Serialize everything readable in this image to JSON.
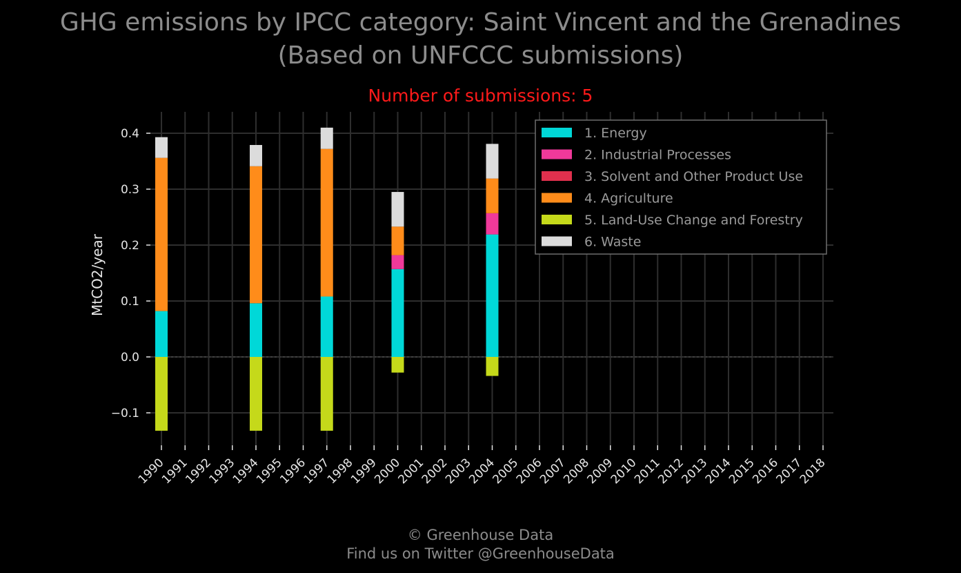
{
  "header": {
    "title_line1": "GHG emissions by IPCC category: Saint Vincent and the Grenadines",
    "title_line2": "(Based on UNFCCC submissions)",
    "subtitle": "Number of submissions: 5"
  },
  "footer": {
    "copyright": "© Greenhouse Data",
    "twitter": "Find us on Twitter @GreenhouseData"
  },
  "colors": {
    "background": "#000000",
    "grid": "#2e2e2e",
    "subtitle": "#ff1a1a"
  },
  "chart_data": {
    "type": "bar",
    "stacked": true,
    "title": "GHG emissions by IPCC category: Saint Vincent and the Grenadines",
    "subtitle": "Number of submissions: 5",
    "xlabel": "",
    "ylabel": "MtCO2/year",
    "ylim": [
      -0.14,
      0.44
    ],
    "yticks": [
      -0.1,
      0.0,
      0.1,
      0.2,
      0.3,
      0.4
    ],
    "ytick_labels": [
      "−0.1",
      "0.0",
      "0.1",
      "0.2",
      "0.3",
      "0.4"
    ],
    "grid": true,
    "legend_position": "top-right",
    "categories": [
      "1990",
      "1991",
      "1992",
      "1993",
      "1994",
      "1995",
      "1996",
      "1997",
      "1998",
      "1999",
      "2000",
      "2001",
      "2002",
      "2003",
      "2004",
      "2005",
      "2006",
      "2007",
      "2008",
      "2009",
      "2010",
      "2011",
      "2012",
      "2013",
      "2014",
      "2015",
      "2016",
      "2017",
      "2018"
    ],
    "series": [
      {
        "name": "1. Energy",
        "color": "#00d8d8",
        "values": [
          0.082,
          null,
          null,
          null,
          0.096,
          null,
          null,
          0.108,
          null,
          null,
          0.157,
          null,
          null,
          null,
          0.219,
          null,
          null,
          null,
          null,
          null,
          null,
          null,
          null,
          null,
          null,
          null,
          null,
          null,
          null
        ]
      },
      {
        "name": "2. Industrial Processes",
        "color": "#f0399a",
        "values": [
          0,
          null,
          null,
          null,
          0,
          null,
          null,
          0,
          null,
          null,
          0.025,
          null,
          null,
          null,
          0.038,
          null,
          null,
          null,
          null,
          null,
          null,
          null,
          null,
          null,
          null,
          null,
          null,
          null,
          null
        ]
      },
      {
        "name": "3. Solvent and Other Product Use",
        "color": "#e0304d",
        "values": [
          0,
          null,
          null,
          null,
          0,
          null,
          null,
          0,
          null,
          null,
          0,
          null,
          null,
          null,
          0,
          null,
          null,
          null,
          null,
          null,
          null,
          null,
          null,
          null,
          null,
          null,
          null,
          null,
          null
        ]
      },
      {
        "name": "4. Agriculture",
        "color": "#ff8c1a",
        "values": [
          0.274,
          null,
          null,
          null,
          0.245,
          null,
          null,
          0.264,
          null,
          null,
          0.051,
          null,
          null,
          null,
          0.062,
          null,
          null,
          null,
          null,
          null,
          null,
          null,
          null,
          null,
          null,
          null,
          null,
          null,
          null
        ]
      },
      {
        "name": "5. Land-Use Change and Forestry",
        "color": "#c5d91a",
        "values": [
          -0.132,
          null,
          null,
          null,
          -0.132,
          null,
          null,
          -0.132,
          null,
          null,
          -0.028,
          null,
          null,
          null,
          -0.034,
          null,
          null,
          null,
          null,
          null,
          null,
          null,
          null,
          null,
          null,
          null,
          null,
          null,
          null
        ]
      },
      {
        "name": "6. Waste",
        "color": "#dcdcdc",
        "values": [
          0.037,
          null,
          null,
          null,
          0.038,
          null,
          null,
          0.038,
          null,
          null,
          0.062,
          null,
          null,
          null,
          0.062,
          null,
          null,
          null,
          null,
          null,
          null,
          null,
          null,
          null,
          null,
          null,
          null,
          null,
          null
        ]
      }
    ]
  }
}
